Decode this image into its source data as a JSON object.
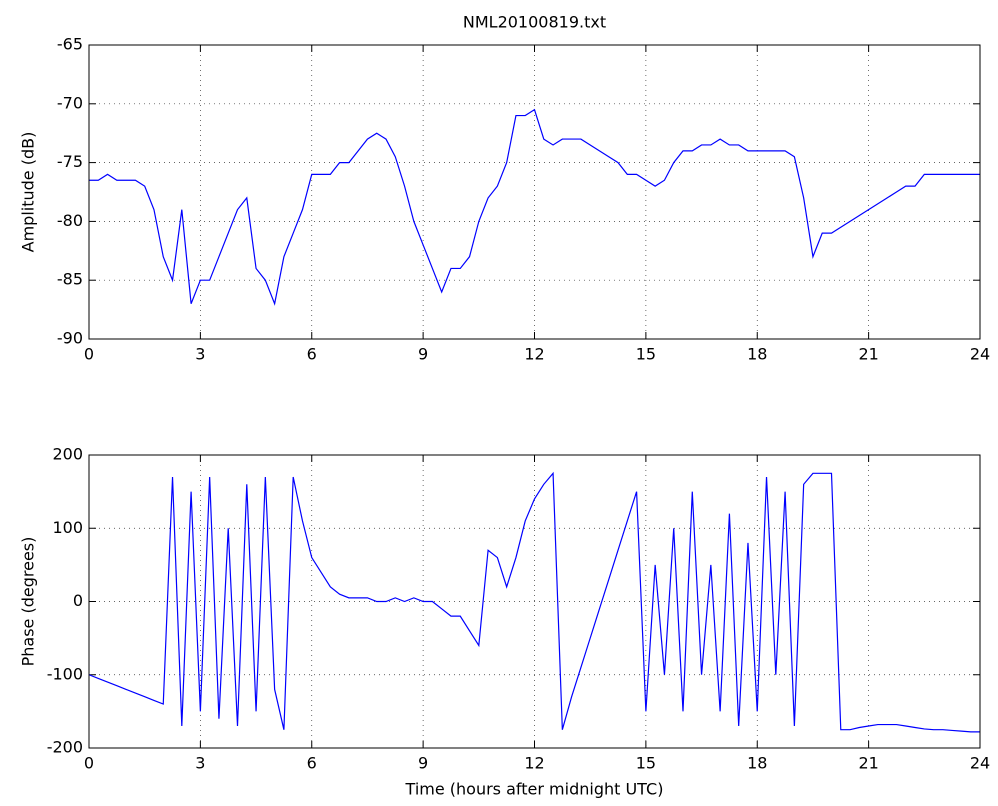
{
  "chart_data": [
    {
      "type": "line",
      "title": "NML20100819.txt",
      "ylabel": "Amplitude (dB)",
      "x": [
        0,
        0.25,
        0.5,
        0.75,
        1,
        1.25,
        1.5,
        1.75,
        2,
        2.25,
        2.5,
        2.75,
        3,
        3.25,
        3.5,
        3.75,
        4,
        4.25,
        4.5,
        4.75,
        5,
        5.25,
        5.5,
        5.75,
        6,
        6.25,
        6.5,
        6.75,
        7,
        7.25,
        7.5,
        7.75,
        8,
        8.25,
        8.5,
        8.75,
        9,
        9.25,
        9.5,
        9.75,
        10,
        10.25,
        10.5,
        10.75,
        11,
        11.25,
        11.5,
        11.75,
        12,
        12.25,
        12.5,
        12.75,
        13,
        13.25,
        13.5,
        13.75,
        14,
        14.25,
        14.5,
        14.75,
        15,
        15.25,
        15.5,
        15.75,
        16,
        16.25,
        16.5,
        16.75,
        17,
        17.25,
        17.5,
        17.75,
        18,
        18.25,
        18.5,
        18.75,
        19,
        19.25,
        19.5,
        19.75,
        20,
        20.25,
        20.5,
        20.75,
        21,
        21.25,
        21.5,
        21.75,
        22,
        22.25,
        22.5,
        22.75,
        23,
        23.25,
        23.5,
        23.75,
        24
      ],
      "series": [
        {
          "name": "Amplitude",
          "color": "#0000ff",
          "values": [
            -76.5,
            -76.5,
            -76,
            -76.5,
            -76.5,
            -76.5,
            -77,
            -79,
            -83,
            -85,
            -79,
            -87,
            -85,
            -85,
            -83,
            -81,
            -79,
            -78,
            -84,
            -85,
            -87,
            -83,
            -81,
            -79,
            -76,
            -76,
            -76,
            -75,
            -75,
            -74,
            -73,
            -72.5,
            -73,
            -74.5,
            -77,
            -80,
            -82,
            -84,
            -86,
            -84,
            -84,
            -83,
            -80,
            -78,
            -77,
            -75,
            -71,
            -71,
            -70.5,
            -73,
            -73.5,
            -73,
            -73,
            -73,
            -73.5,
            -74,
            -74.5,
            -75,
            -76,
            -76,
            -76.5,
            -77,
            -76.5,
            -75,
            -74,
            -74,
            -73.5,
            -73.5,
            -73,
            -73.5,
            -73.5,
            -74,
            -74,
            -74,
            -74,
            -74,
            -74.5,
            -78,
            -83,
            -81,
            -81,
            -80.5,
            -80,
            -79.5,
            -79,
            -78.5,
            -78,
            -77.5,
            -77,
            -77,
            -76,
            -76,
            -76,
            -76,
            -76,
            -76,
            -76
          ]
        }
      ],
      "xlim": [
        0,
        24
      ],
      "xticks": [
        0,
        3,
        6,
        9,
        12,
        15,
        18,
        21,
        24
      ],
      "ylim": [
        -90,
        -65
      ],
      "yticks": [
        -90,
        -85,
        -80,
        -75,
        -70,
        -65
      ],
      "grid": true
    },
    {
      "type": "line",
      "xlabel": "Time (hours after midnight UTC)",
      "ylabel": "Phase (degrees)",
      "x": [
        0,
        0.25,
        0.5,
        0.75,
        1,
        1.25,
        1.5,
        1.75,
        2,
        2.25,
        2.5,
        2.75,
        3,
        3.25,
        3.5,
        3.75,
        4,
        4.25,
        4.5,
        4.75,
        5,
        5.25,
        5.5,
        5.75,
        6,
        6.25,
        6.5,
        6.75,
        7,
        7.25,
        7.5,
        7.75,
        8,
        8.25,
        8.5,
        8.75,
        9,
        9.25,
        9.5,
        9.75,
        10,
        10.25,
        10.5,
        10.75,
        11,
        11.25,
        11.5,
        11.75,
        12,
        12.25,
        12.5,
        12.75,
        13,
        13.25,
        13.5,
        13.75,
        14,
        14.25,
        14.5,
        14.75,
        15,
        15.25,
        15.5,
        15.75,
        16,
        16.25,
        16.5,
        16.75,
        17,
        17.25,
        17.5,
        17.75,
        18,
        18.25,
        18.5,
        18.75,
        19,
        19.25,
        19.5,
        19.75,
        20,
        20.25,
        20.5,
        20.75,
        21,
        21.25,
        21.5,
        21.75,
        22,
        22.25,
        22.5,
        22.75,
        23,
        23.25,
        23.5,
        23.75,
        24
      ],
      "series": [
        {
          "name": "Phase",
          "color": "#0000ff",
          "values": [
            -100,
            -105,
            -110,
            -115,
            -120,
            -125,
            -130,
            -135,
            -140,
            170,
            -170,
            150,
            -150,
            170,
            -160,
            100,
            -170,
            160,
            -150,
            170,
            -120,
            -175,
            170,
            110,
            60,
            40,
            20,
            10,
            5,
            5,
            5,
            0,
            0,
            5,
            0,
            5,
            0,
            0,
            -10,
            -20,
            -20,
            -40,
            -60,
            70,
            60,
            20,
            60,
            110,
            140,
            160,
            175,
            -175,
            -130,
            -90,
            -50,
            -10,
            30,
            70,
            110,
            150,
            -150,
            50,
            -100,
            100,
            -150,
            150,
            -100,
            50,
            -150,
            120,
            -170,
            80,
            -150,
            170,
            -100,
            150,
            -170,
            160,
            175,
            175,
            175,
            -175,
            -175,
            -172,
            -170,
            -168,
            -168,
            -168,
            -170,
            -172,
            -174,
            -175,
            -175,
            -176,
            -177,
            -178,
            -178
          ]
        }
      ],
      "xlim": [
        0,
        24
      ],
      "xticks": [
        0,
        3,
        6,
        9,
        12,
        15,
        18,
        21,
        24
      ],
      "ylim": [
        -200,
        200
      ],
      "yticks": [
        -200,
        -100,
        0,
        100,
        200
      ],
      "grid": true
    }
  ]
}
